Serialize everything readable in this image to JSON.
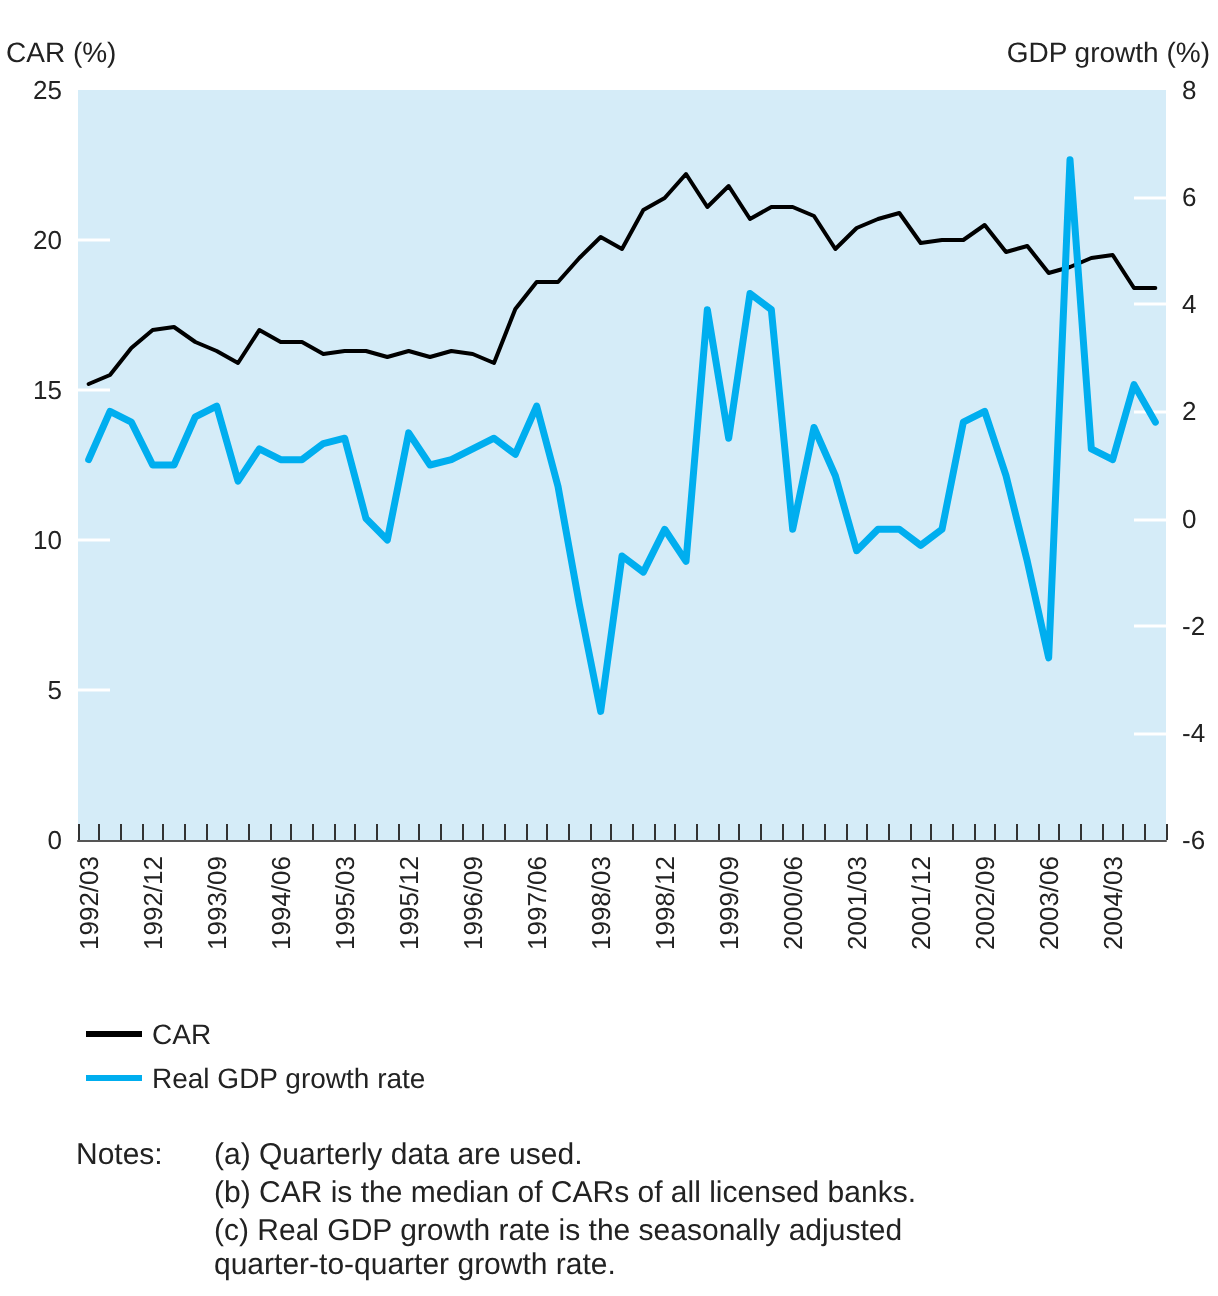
{
  "chart_data": {
    "type": "line",
    "ylabel": "CAR (%)",
    "y2label": "GDP growth (%)",
    "categories": [
      "1992/03",
      null,
      null,
      "1992/12",
      null,
      null,
      "1993/09",
      null,
      null,
      "1994/06",
      null,
      null,
      "1995/03",
      null,
      null,
      "1995/12",
      null,
      null,
      "1996/09",
      null,
      null,
      "1997/06",
      null,
      null,
      "1998/03",
      null,
      null,
      "1998/12",
      null,
      null,
      "1999/09",
      null,
      null,
      "2000/06",
      null,
      null,
      "2001/03",
      null,
      null,
      "2001/12",
      null,
      null,
      "2002/09",
      null,
      null,
      "2003/06",
      null,
      null,
      "2004/03",
      null,
      null
    ],
    "series": [
      {
        "name": "CAR",
        "color": "#000000",
        "values": [
          15.2,
          15.5,
          16.4,
          17.0,
          17.1,
          16.6,
          16.3,
          15.9,
          17.0,
          16.6,
          16.6,
          16.2,
          16.3,
          16.3,
          16.1,
          16.3,
          16.1,
          16.3,
          16.2,
          15.9,
          17.7,
          18.6,
          18.6,
          19.4,
          20.1,
          19.7,
          21.0,
          21.4,
          22.2,
          21.1,
          21.8,
          20.7,
          21.1,
          21.1,
          20.8,
          19.7,
          20.4,
          20.7,
          20.9,
          19.9,
          20.0,
          20.0,
          20.5,
          19.6,
          19.8,
          18.9,
          19.1,
          19.4,
          19.5,
          18.4,
          18.4
        ]
      },
      {
        "name": "Real GDP growth rate",
        "color": "#00aeef",
        "axis": "y2",
        "values": [
          1.1,
          2.0,
          1.8,
          1.0,
          1.0,
          1.9,
          2.1,
          0.7,
          1.3,
          1.1,
          1.1,
          1.4,
          1.5,
          0.0,
          -0.4,
          1.6,
          1.0,
          1.1,
          1.3,
          1.5,
          1.2,
          2.1,
          0.6,
          -1.6,
          -3.6,
          -0.7,
          -1.0,
          -0.2,
          -0.8,
          3.9,
          1.5,
          4.2,
          3.9,
          -0.2,
          1.7,
          0.8,
          -0.6,
          -0.2,
          -0.2,
          -0.5,
          -0.2,
          1.8,
          2.0,
          0.8,
          -0.8,
          -2.6,
          6.7,
          1.3,
          1.1,
          2.5,
          1.8
        ]
      }
    ],
    "ylim": [
      0,
      25
    ],
    "yticks": [
      0,
      5,
      10,
      15,
      20,
      25
    ],
    "y2lim": [
      -6,
      8
    ],
    "y2ticks": [
      -6,
      -4,
      -2,
      0,
      2,
      4,
      6,
      8
    ],
    "legend": "bottom left",
    "line_style": "solid",
    "marker": "none",
    "annotations": [
      "Notes:",
      "(a) Quarterly data are used.",
      "(b) CAR is the median of CARs of all licensed banks.",
      "(c) Real GDP growth rate is the seasonally adjusted\nquarter-to-quarter growth rate."
    ]
  }
}
